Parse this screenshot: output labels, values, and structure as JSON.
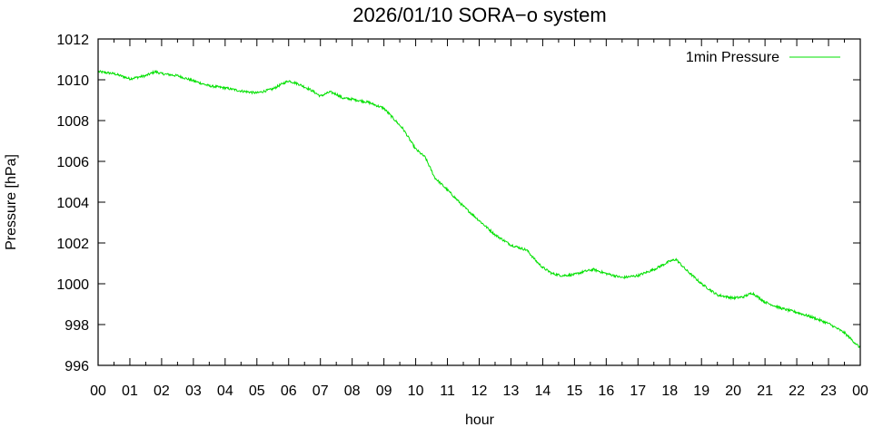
{
  "chart_data": {
    "type": "line",
    "title": "2026/01/10 SORA−o system",
    "xlabel": "hour",
    "ylabel": "Pressure [hPa]",
    "xlim": [
      0,
      24
    ],
    "ylim": [
      996,
      1012
    ],
    "x_ticks": [
      "00",
      "01",
      "02",
      "03",
      "04",
      "05",
      "06",
      "07",
      "08",
      "09",
      "10",
      "11",
      "12",
      "13",
      "14",
      "15",
      "16",
      "17",
      "18",
      "19",
      "20",
      "21",
      "22",
      "23",
      "00"
    ],
    "y_ticks": [
      "996",
      "998",
      "1000",
      "1002",
      "1004",
      "1006",
      "1008",
      "1010",
      "1012"
    ],
    "legend_position": "top-right",
    "grid": false,
    "series": [
      {
        "name": "1min Pressure",
        "color": "#00e000",
        "x": [
          0,
          0.5,
          1,
          1.5,
          1.8,
          2,
          2.5,
          3,
          3.5,
          4,
          4.5,
          5,
          5.5,
          5.8,
          6,
          6.3,
          6.7,
          7,
          7.3,
          7.5,
          7.7,
          8,
          8.5,
          9,
          9.3,
          9.6,
          10,
          10.3,
          10.6,
          11,
          11.5,
          12,
          12.5,
          13,
          13.5,
          13.8,
          14,
          14.3,
          14.6,
          15,
          15.3,
          15.6,
          16,
          16.5,
          17,
          17.5,
          18,
          18.2,
          18.5,
          19,
          19.5,
          20,
          20.3,
          20.6,
          21,
          21.5,
          22,
          22.5,
          23,
          23.5,
          24
        ],
        "y": [
          1010.4,
          1010.3,
          1010.05,
          1010.2,
          1010.4,
          1010.3,
          1010.2,
          1009.95,
          1009.7,
          1009.6,
          1009.45,
          1009.35,
          1009.55,
          1009.8,
          1009.95,
          1009.8,
          1009.5,
          1009.2,
          1009.4,
          1009.3,
          1009.1,
          1009.05,
          1008.9,
          1008.6,
          1008.1,
          1007.6,
          1006.6,
          1006.2,
          1005.2,
          1004.6,
          1003.8,
          1003.1,
          1002.4,
          1001.9,
          1001.65,
          1001.1,
          1000.8,
          1000.5,
          1000.4,
          1000.45,
          1000.6,
          1000.7,
          1000.5,
          1000.3,
          1000.4,
          1000.7,
          1001.1,
          1001.2,
          1000.7,
          1000.0,
          999.45,
          999.3,
          999.35,
          999.55,
          999.1,
          998.8,
          998.6,
          998.35,
          998.05,
          997.6,
          996.85
        ]
      }
    ]
  }
}
